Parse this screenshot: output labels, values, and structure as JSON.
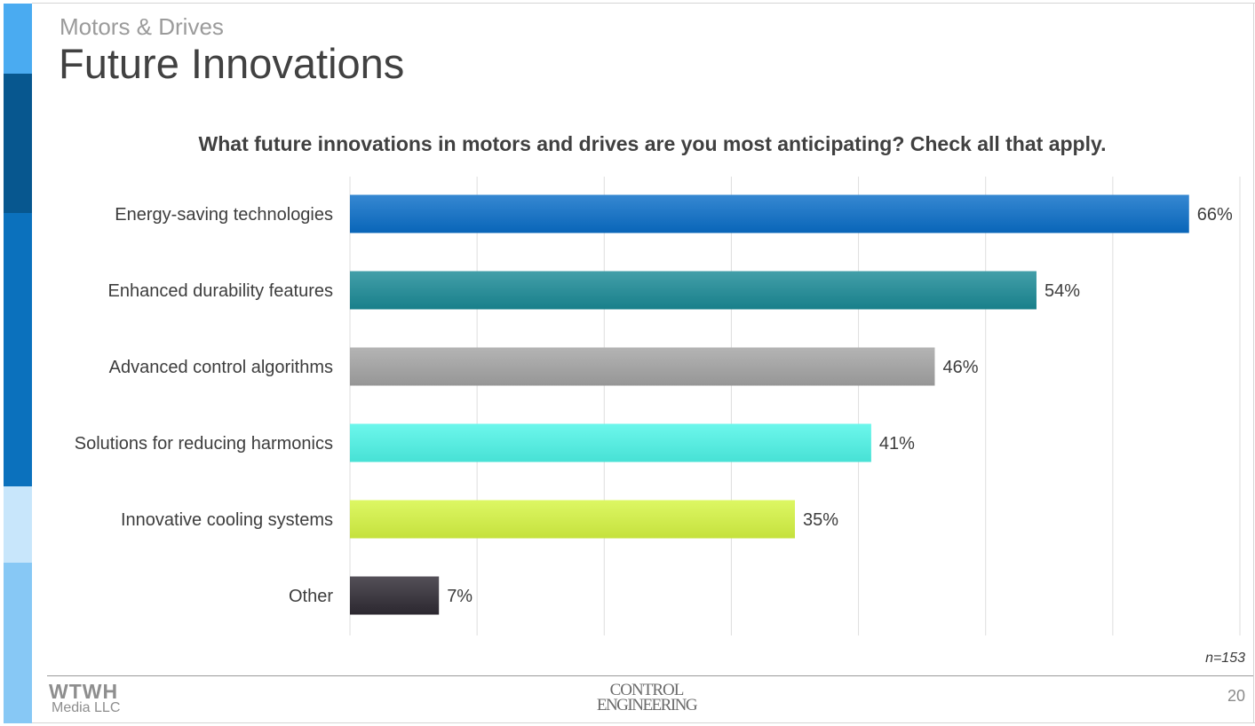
{
  "slide": {
    "section": "Motors & Drives",
    "title": "Future Innovations",
    "question": "What future innovations in motors and drives are you most anticipating? Check all that apply.",
    "sample_size": "n=153",
    "page_number": "20",
    "logo_left_line1": "WTWH",
    "logo_left_line2": "Media LLC",
    "logo_center_line1": "CONTROL",
    "logo_center_line2": "ENGINEERING"
  },
  "side_band_colors": [
    "#4aabf1",
    "#07578f",
    "#0b71bd",
    "#c8e6fb",
    "#87c8f5"
  ],
  "chart_data": {
    "type": "bar",
    "orientation": "horizontal",
    "title": "What future innovations in motors and drives are you most anticipating? Check all that apply.",
    "categories": [
      "Energy-saving technologies",
      "Enhanced durability features",
      "Advanced control algorithms",
      "Solutions for reducing harmonics",
      "Innovative cooling systems",
      "Other"
    ],
    "values": [
      66,
      54,
      46,
      41,
      35,
      7
    ],
    "data_labels": [
      "66%",
      "54%",
      "46%",
      "41%",
      "35%",
      "7%"
    ],
    "colors": [
      "#0a6ec8",
      "#1a8a96",
      "#a3a3a3",
      "#4df5e8",
      "#d6f542",
      "#2f2a33"
    ],
    "xlim": [
      0,
      70
    ],
    "grid": true,
    "legend": "none"
  }
}
